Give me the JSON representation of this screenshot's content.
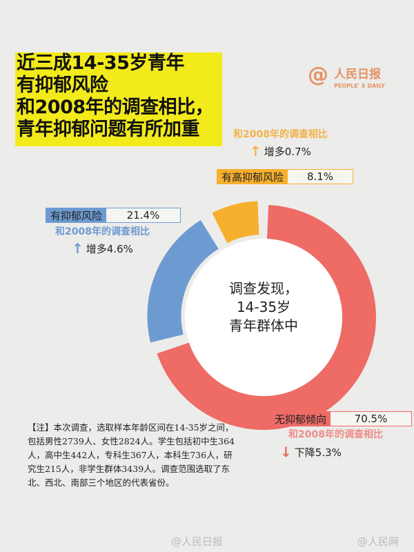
{
  "title": "近三成14-35岁青年\n有抑郁风险\n和2008年的调查相比，\n青年抑郁问题有所加重",
  "logo": {
    "cn": "人民日报",
    "en": "PEOPLE' S DAILY"
  },
  "center_text": "调查发现，\n14-35岁\n青年群体中",
  "colors": {
    "high": "#f6b02e",
    "risk": "#6d9bd1",
    "none": "#ee6b66",
    "title_bg": "#f2ea1a"
  },
  "chart_data": {
    "type": "pie",
    "style": "donut",
    "categories": [
      "无抑郁倾向",
      "有抑郁风险",
      "有高抑郁风险"
    ],
    "values": [
      70.5,
      21.4,
      8.1
    ],
    "labels": [
      "70.5%",
      "21.4%",
      "8.1%"
    ],
    "comparisons": [
      {
        "caption": "和2008年的调查相比",
        "change": "下降5.3%",
        "direction": "down",
        "arrow": "↓"
      },
      {
        "caption": "和2008年的调查相比",
        "change": "增多4.6%",
        "direction": "up",
        "arrow": "↑"
      },
      {
        "caption": "和2008年的调查相比",
        "change": "增多0.7%",
        "direction": "up",
        "arrow": "↑"
      }
    ]
  },
  "note": "【注】本次调查，选取样本年龄区间在14-35岁之间，包括男性2739人、女性2824人。学生包括初中生364人，高中生442人，专科生367人，本科生736人，研究生215人，非学生群体3439人。调查范围选取了东北、西北、南部三个地区的代表省份。",
  "watermarks": [
    "@人民日报",
    "@人民网"
  ]
}
